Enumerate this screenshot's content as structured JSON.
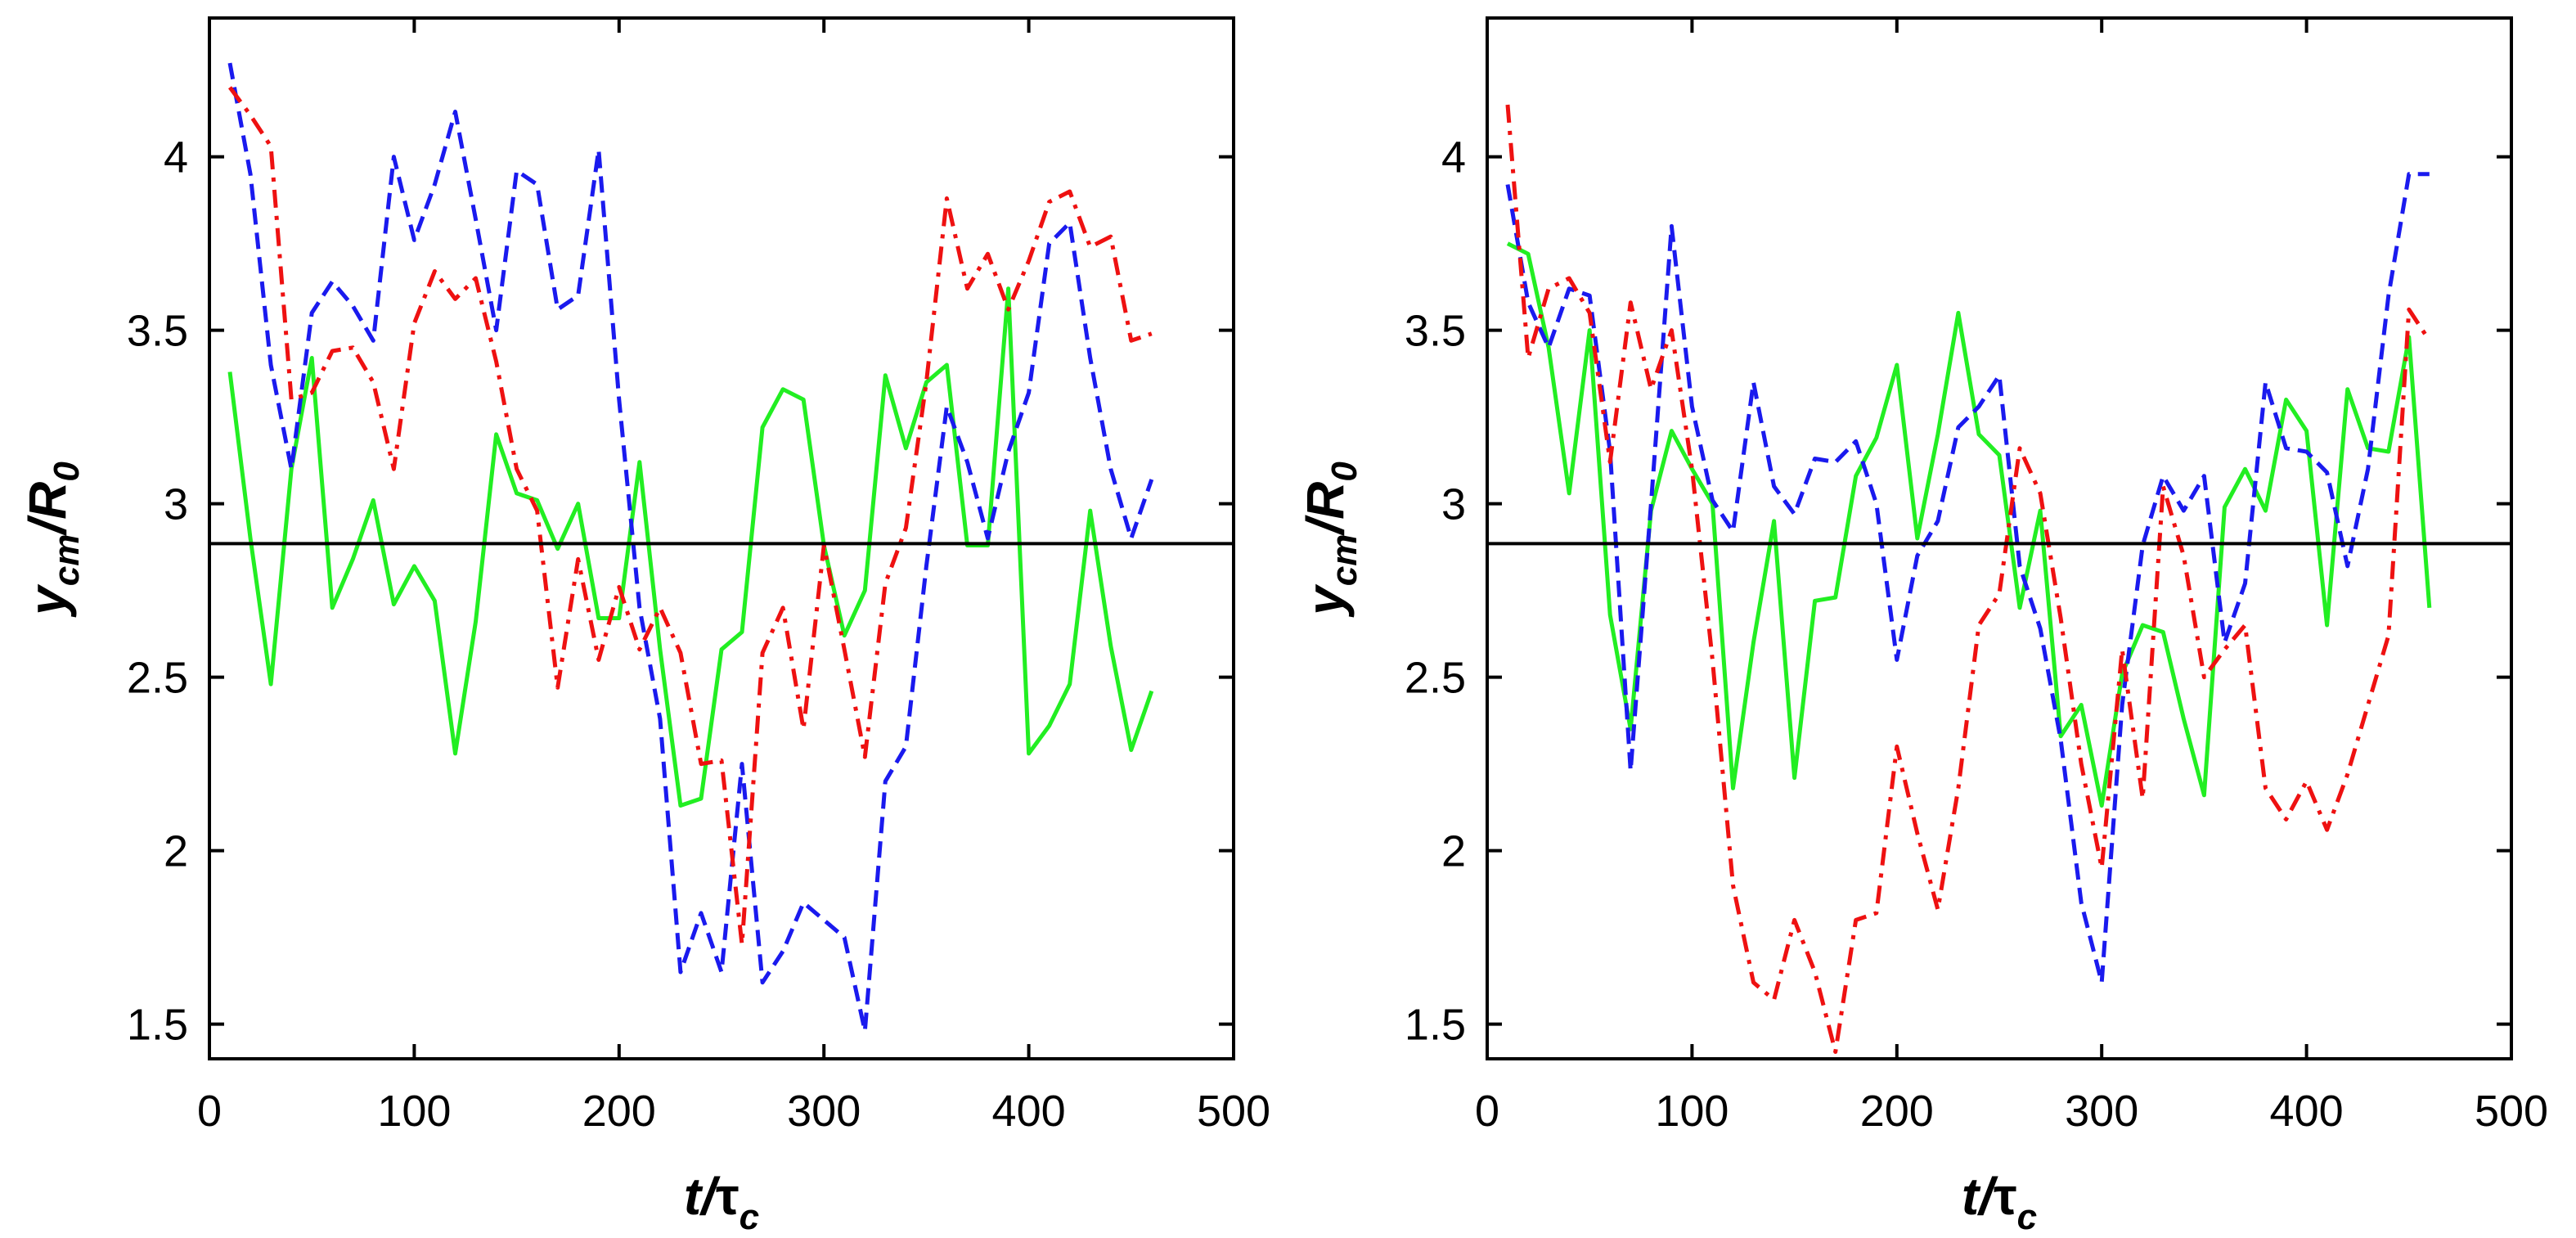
{
  "chart_data": [
    {
      "type": "line",
      "xlim": [
        0,
        500
      ],
      "ylim": [
        1.4,
        4.4
      ],
      "xticks": [
        "0",
        "100",
        "200",
        "300",
        "400",
        "500"
      ],
      "yticks": [
        "1.5",
        "2",
        "2.5",
        "3",
        "3.5",
        "4"
      ],
      "xlabel": {
        "main": "t/",
        "greek": "τ",
        "sub": "c"
      },
      "ylabel": {
        "main": "y",
        "sub1": "cm",
        "mid": "/R",
        "sub2": "0"
      },
      "reference_line": {
        "y": 2.885,
        "color": "#000000"
      },
      "series": [
        {
          "name": "green-solid",
          "color": "#22ee22",
          "style": "solid",
          "x": [
            10,
            20,
            30,
            40,
            50,
            60,
            70,
            80,
            90,
            100,
            110,
            120,
            130,
            140,
            150,
            160,
            170,
            180,
            190,
            200,
            210,
            220,
            230,
            240,
            250,
            260,
            270,
            280,
            290,
            300,
            310,
            320,
            330,
            340,
            350,
            360,
            370,
            380,
            390,
            400,
            410,
            420,
            430,
            440,
            450,
            460
          ],
          "y": [
            3.38,
            2.9,
            2.48,
            3.1,
            3.42,
            2.7,
            2.84,
            3.01,
            2.71,
            2.82,
            2.72,
            2.28,
            2.66,
            3.2,
            3.03,
            3.01,
            2.87,
            3.0,
            2.67,
            2.67,
            3.12,
            2.58,
            2.13,
            2.15,
            2.58,
            2.63,
            3.22,
            3.33,
            3.3,
            2.88,
            2.62,
            2.75,
            3.37,
            3.16,
            3.35,
            3.4,
            2.88,
            2.88,
            3.62,
            2.28,
            2.36,
            2.48,
            2.98,
            2.59,
            2.29,
            2.46
          ]
        },
        {
          "name": "blue-dashed",
          "color": "#1a1aee",
          "style": "dashed",
          "x": [
            10,
            20,
            30,
            40,
            50,
            60,
            70,
            80,
            90,
            100,
            110,
            120,
            130,
            140,
            150,
            160,
            170,
            180,
            190,
            200,
            210,
            220,
            230,
            240,
            250,
            260,
            270,
            280,
            290,
            300,
            310,
            320,
            330,
            340,
            350,
            360,
            370,
            380,
            390,
            400,
            410,
            420,
            430,
            440,
            450,
            460
          ],
          "y": [
            4.27,
            3.95,
            3.4,
            3.1,
            3.55,
            3.64,
            3.57,
            3.47,
            4.0,
            3.76,
            3.92,
            4.13,
            3.82,
            3.5,
            3.96,
            3.92,
            3.56,
            3.6,
            4.02,
            3.3,
            2.7,
            2.38,
            1.65,
            1.82,
            1.65,
            2.25,
            1.62,
            1.71,
            1.85,
            1.8,
            1.75,
            1.48,
            2.2,
            2.3,
            2.82,
            3.28,
            3.12,
            2.9,
            3.15,
            3.32,
            3.75,
            3.81,
            3.42,
            3.1,
            2.9,
            3.07
          ]
        },
        {
          "name": "red-dashdot",
          "color": "#ee1111",
          "style": "dashdot",
          "x": [
            10,
            20,
            30,
            40,
            50,
            60,
            70,
            80,
            90,
            100,
            110,
            120,
            130,
            140,
            150,
            160,
            170,
            180,
            190,
            200,
            210,
            220,
            230,
            240,
            250,
            260,
            270,
            280,
            290,
            300,
            310,
            320,
            330,
            340,
            350,
            360,
            370,
            380,
            390,
            400,
            410,
            420,
            430,
            440,
            450,
            460
          ],
          "y": [
            4.2,
            4.12,
            4.03,
            3.3,
            3.32,
            3.44,
            3.45,
            3.35,
            3.1,
            3.52,
            3.67,
            3.59,
            3.65,
            3.41,
            3.1,
            2.98,
            2.47,
            2.84,
            2.55,
            2.76,
            2.58,
            2.7,
            2.57,
            2.25,
            2.26,
            1.73,
            2.57,
            2.7,
            2.35,
            2.88,
            2.58,
            2.27,
            2.77,
            2.93,
            3.35,
            3.88,
            3.62,
            3.72,
            3.56,
            3.7,
            3.87,
            3.9,
            3.74,
            3.77,
            3.47,
            3.49
          ]
        }
      ]
    },
    {
      "type": "line",
      "xlim": [
        0,
        500
      ],
      "ylim": [
        1.4,
        4.4
      ],
      "xticks": [
        "0",
        "100",
        "200",
        "300",
        "400",
        "500"
      ],
      "yticks": [
        "1.5",
        "2",
        "2.5",
        "3",
        "3.5",
        "4"
      ],
      "xlabel": {
        "main": "t/",
        "greek": "τ",
        "sub": "c"
      },
      "ylabel": {
        "main": "y",
        "sub1": "cm",
        "mid": "/R",
        "sub2": "0"
      },
      "reference_line": {
        "y": 2.885,
        "color": "#000000"
      },
      "series": [
        {
          "name": "green-solid",
          "color": "#22ee22",
          "style": "solid",
          "x": [
            10,
            20,
            30,
            40,
            50,
            60,
            70,
            80,
            90,
            100,
            110,
            120,
            130,
            140,
            150,
            160,
            170,
            180,
            190,
            200,
            210,
            220,
            230,
            240,
            250,
            260,
            270,
            280,
            290,
            300,
            310,
            320,
            330,
            340,
            350,
            360,
            370,
            380,
            390,
            400,
            410,
            420,
            430,
            440,
            450,
            460
          ],
          "y": [
            3.75,
            3.72,
            3.45,
            3.03,
            3.5,
            2.68,
            2.35,
            2.98,
            3.21,
            3.1,
            3.0,
            2.18,
            2.6,
            2.95,
            2.21,
            2.72,
            2.73,
            3.08,
            3.19,
            3.4,
            2.9,
            3.2,
            3.55,
            3.2,
            3.14,
            2.7,
            2.98,
            2.33,
            2.42,
            2.13,
            2.51,
            2.65,
            2.63,
            2.38,
            2.16,
            2.99,
            3.1,
            2.98,
            3.3,
            3.21,
            2.65,
            3.33,
            3.16,
            3.15,
            3.48,
            2.7
          ]
        },
        {
          "name": "blue-dashed",
          "color": "#1a1aee",
          "style": "dashed",
          "x": [
            10,
            20,
            30,
            40,
            50,
            60,
            70,
            80,
            90,
            100,
            110,
            120,
            130,
            140,
            150,
            160,
            170,
            180,
            190,
            200,
            210,
            220,
            230,
            240,
            250,
            260,
            270,
            280,
            290,
            300,
            310,
            320,
            330,
            340,
            350,
            360,
            370,
            380,
            390,
            400,
            410,
            420,
            430,
            440,
            450,
            460
          ],
          "y": [
            3.92,
            3.58,
            3.45,
            3.62,
            3.6,
            3.15,
            2.23,
            3.0,
            3.8,
            3.28,
            3.01,
            2.92,
            3.35,
            3.05,
            2.97,
            3.13,
            3.12,
            3.18,
            3.0,
            2.55,
            2.85,
            2.95,
            3.22,
            3.28,
            3.37,
            2.82,
            2.64,
            2.32,
            1.85,
            1.62,
            2.42,
            2.88,
            3.08,
            2.98,
            3.08,
            2.6,
            2.77,
            3.35,
            3.16,
            3.15,
            3.09,
            2.82,
            3.1,
            3.6,
            3.95,
            3.95
          ]
        },
        {
          "name": "red-dashdot",
          "color": "#ee1111",
          "style": "dashdot",
          "x": [
            10,
            20,
            30,
            40,
            50,
            60,
            70,
            80,
            90,
            100,
            110,
            120,
            130,
            140,
            150,
            160,
            170,
            180,
            190,
            200,
            210,
            220,
            230,
            240,
            250,
            260,
            270,
            280,
            290,
            300,
            310,
            320,
            330,
            340,
            350,
            360,
            370,
            380,
            390,
            400,
            410,
            420,
            430,
            440,
            450,
            460
          ],
          "y": [
            4.15,
            3.42,
            3.62,
            3.65,
            3.55,
            3.12,
            3.58,
            3.33,
            3.5,
            3.1,
            2.55,
            1.9,
            1.62,
            1.57,
            1.8,
            1.65,
            1.42,
            1.8,
            1.82,
            2.3,
            2.05,
            1.83,
            2.18,
            2.65,
            2.74,
            3.16,
            3.03,
            2.67,
            2.25,
            1.95,
            2.58,
            2.15,
            3.05,
            2.85,
            2.5,
            2.58,
            2.65,
            2.18,
            2.09,
            2.2,
            2.06,
            2.22,
            2.42,
            2.62,
            3.56,
            3.47
          ]
        }
      ]
    }
  ]
}
